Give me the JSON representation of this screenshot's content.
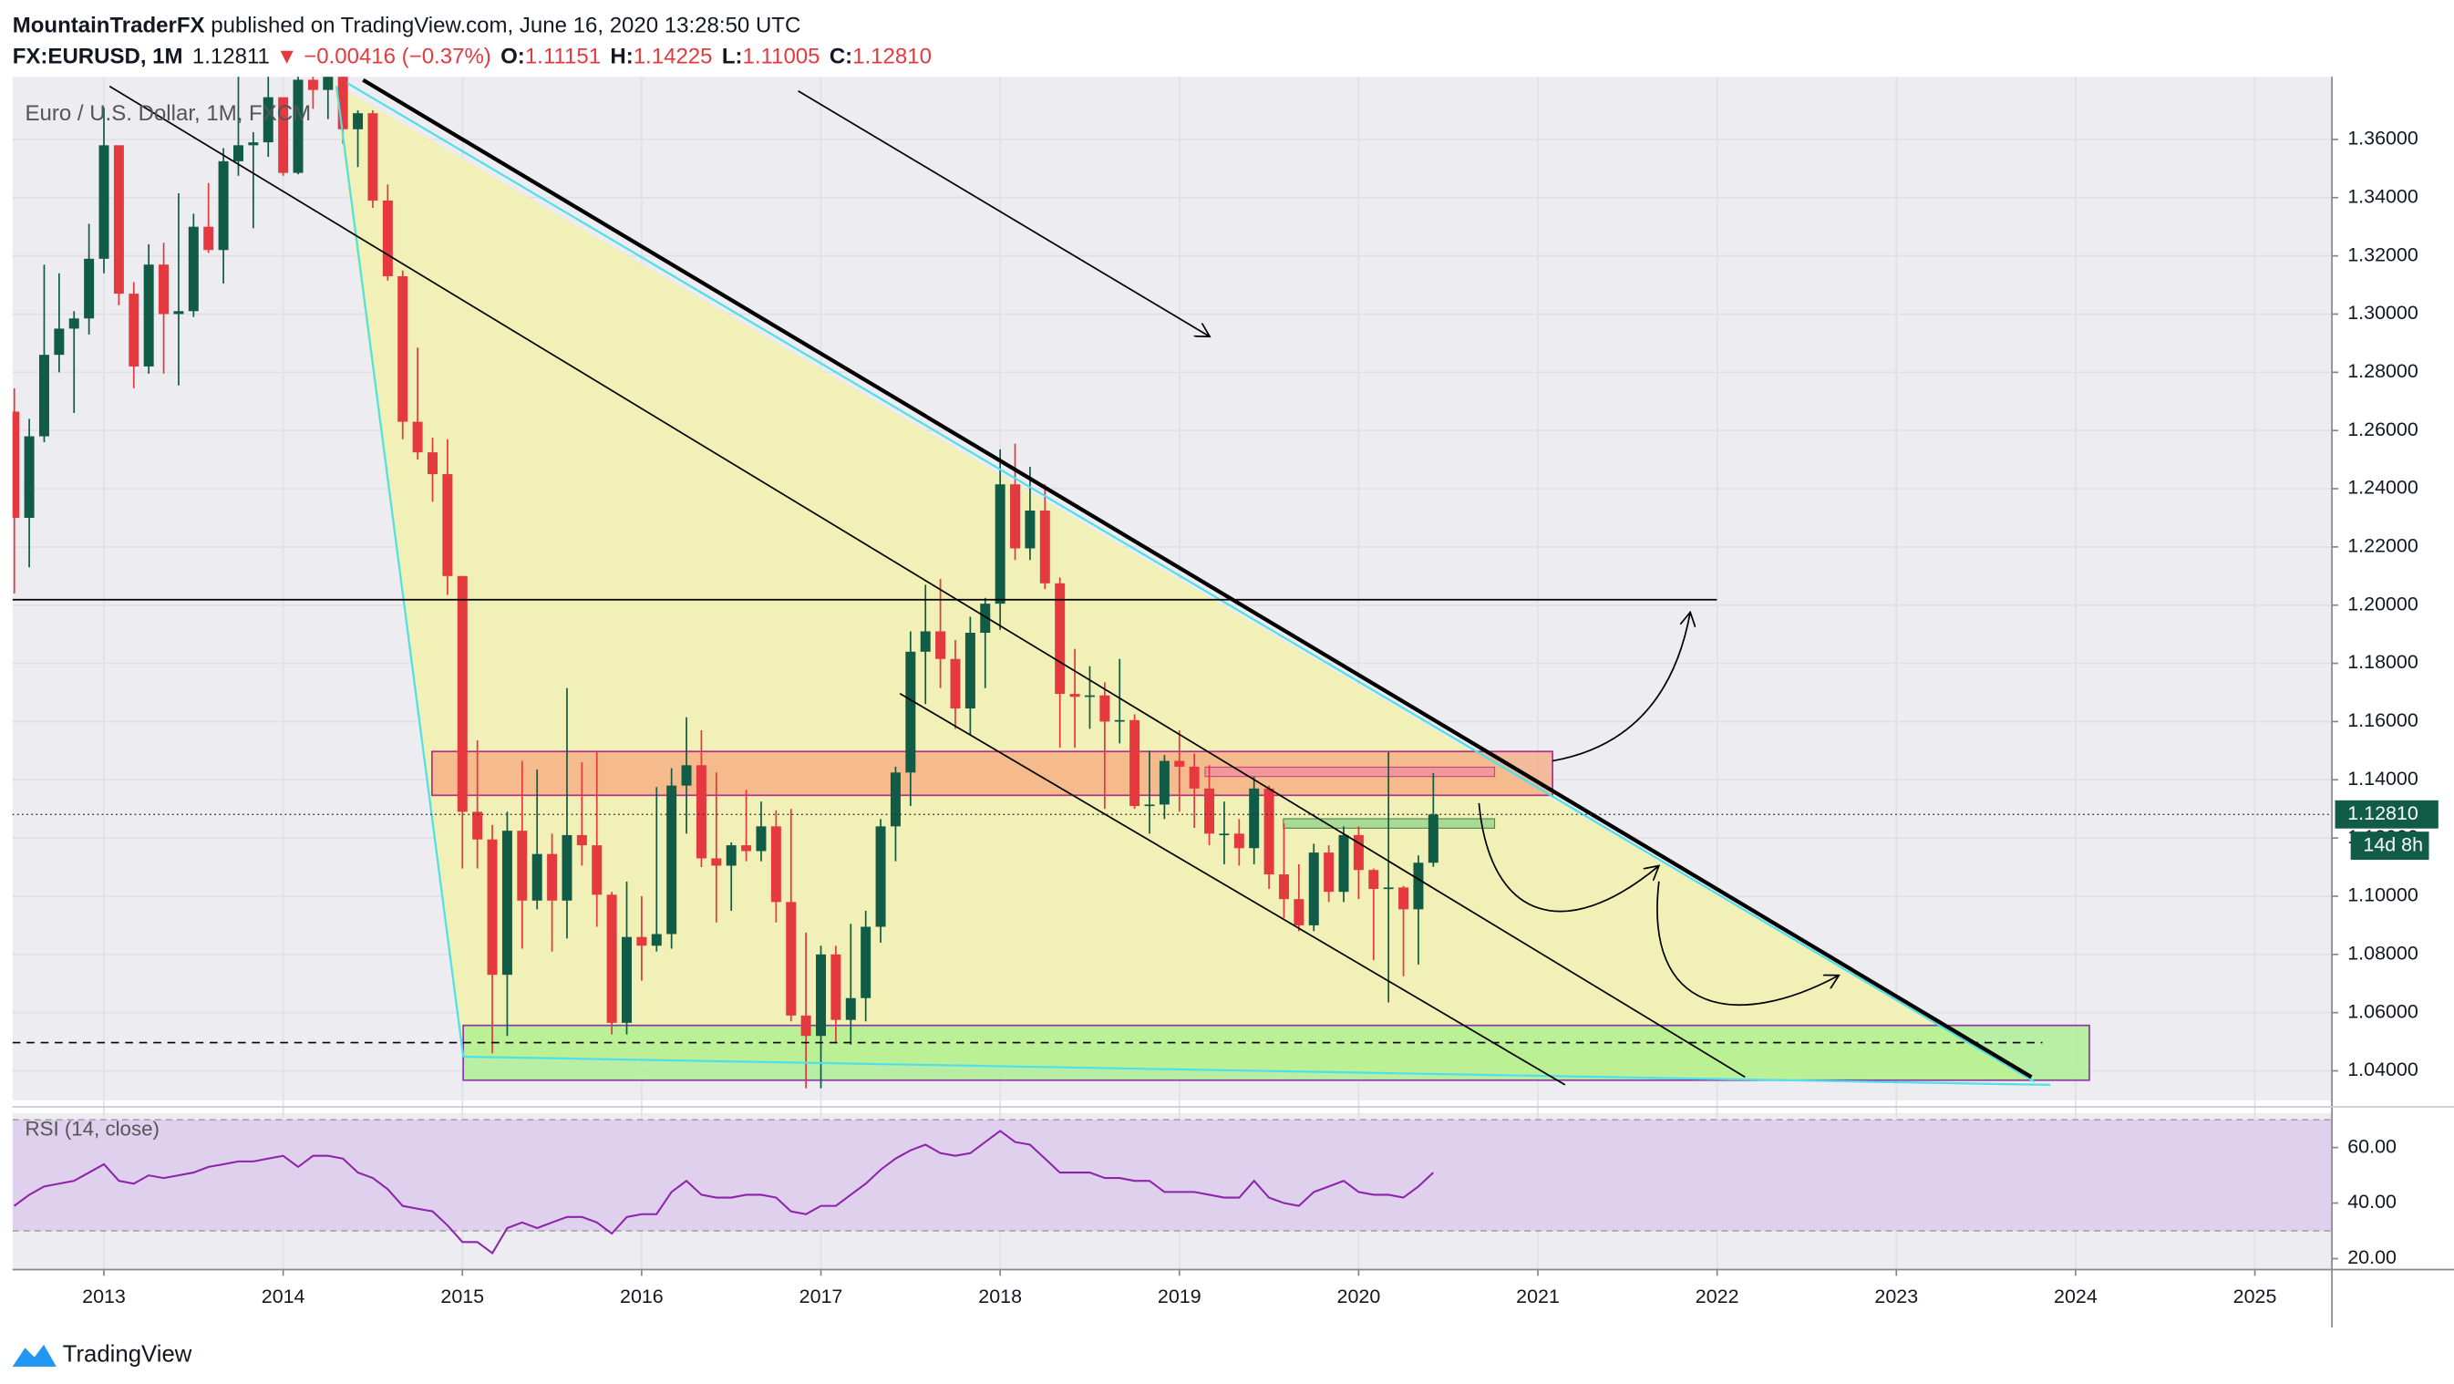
{
  "header": {
    "author": "MountainTraderFX",
    "published": " published on TradingView.com, June 16, 2020 13:28:50 UTC",
    "symbol": "FX:EURUSD, 1M",
    "last": "1.12811",
    "change": "▼ −0.00416 (−0.37%)",
    "ohlc": [
      {
        "label": "O:",
        "value": "1.11151"
      },
      {
        "label": "H:",
        "value": "1.14225"
      },
      {
        "label": "L:",
        "value": "1.11005"
      },
      {
        "label": "C:",
        "value": "1.12810"
      }
    ]
  },
  "footer": "TradingView",
  "chart_data": {
    "type": "candlestick",
    "title": "Euro / U.S. Dollar, 1M, FXCM",
    "x": [
      "2012-07",
      "2012-08",
      "2012-09",
      "2012-10",
      "2012-11",
      "2012-12",
      "2013-01",
      "2013-02",
      "2013-03",
      "2013-04",
      "2013-05",
      "2013-06",
      "2013-07",
      "2013-08",
      "2013-09",
      "2013-10",
      "2013-11",
      "2013-12",
      "2014-01",
      "2014-02",
      "2014-03",
      "2014-04",
      "2014-05",
      "2014-06",
      "2014-07",
      "2014-08",
      "2014-09",
      "2014-10",
      "2014-11",
      "2014-12",
      "2015-01",
      "2015-02",
      "2015-03",
      "2015-04",
      "2015-05",
      "2015-06",
      "2015-07",
      "2015-08",
      "2015-09",
      "2015-10",
      "2015-11",
      "2015-12",
      "2016-01",
      "2016-02",
      "2016-03",
      "2016-04",
      "2016-05",
      "2016-06",
      "2016-07",
      "2016-08",
      "2016-09",
      "2016-10",
      "2016-11",
      "2016-12",
      "2017-01",
      "2017-02",
      "2017-03",
      "2017-04",
      "2017-05",
      "2017-06",
      "2017-07",
      "2017-08",
      "2017-09",
      "2017-10",
      "2017-11",
      "2017-12",
      "2018-01",
      "2018-02",
      "2018-03",
      "2018-04",
      "2018-05",
      "2018-06",
      "2018-07",
      "2018-08",
      "2018-09",
      "2018-10",
      "2018-11",
      "2018-12",
      "2019-01",
      "2019-02",
      "2019-03",
      "2019-04",
      "2019-05",
      "2019-06",
      "2019-07",
      "2019-08",
      "2019-09",
      "2019-10",
      "2019-11",
      "2019-12",
      "2020-01",
      "2020-02",
      "2020-03",
      "2020-04",
      "2020-05",
      "2020-06"
    ],
    "open": [
      1.2665,
      1.23,
      1.258,
      1.286,
      1.295,
      1.2985,
      1.319,
      1.358,
      1.307,
      1.282,
      1.317,
      1.3,
      1.301,
      1.33,
      1.322,
      1.3525,
      1.358,
      1.359,
      1.3745,
      1.3485,
      1.3805,
      1.377,
      1.387,
      1.3635,
      1.369,
      1.339,
      1.313,
      1.263,
      1.2525,
      1.245,
      1.21,
      1.129,
      1.1195,
      1.073,
      1.1225,
      1.0985,
      1.1145,
      1.0985,
      1.121,
      1.1175,
      1.1005,
      1.0565,
      1.086,
      1.083,
      1.087,
      1.138,
      1.145,
      1.113,
      1.1105,
      1.1175,
      1.1155,
      1.124,
      1.098,
      1.059,
      1.052,
      1.08,
      1.0575,
      1.065,
      1.0895,
      1.124,
      1.1425,
      1.184,
      1.191,
      1.1815,
      1.1645,
      1.1905,
      1.2005,
      1.2415,
      1.2195,
      1.2325,
      1.2075,
      1.1695,
      1.1685,
      1.169,
      1.16,
      1.1605,
      1.131,
      1.1315,
      1.1465,
      1.1445,
      1.137,
      1.1215,
      1.1215,
      1.1165,
      1.137,
      1.1075,
      1.099,
      1.09,
      1.115,
      1.1015,
      1.121,
      1.109,
      1.1025,
      1.103,
      1.0955,
      1.1115
    ],
    "high": [
      1.2745,
      1.264,
      1.317,
      1.314,
      1.301,
      1.331,
      1.371,
      1.357,
      1.311,
      1.324,
      1.3245,
      1.3415,
      1.3345,
      1.345,
      1.357,
      1.3835,
      1.3625,
      1.3895,
      1.374,
      1.3825,
      1.3965,
      1.3995,
      1.3995,
      1.37,
      1.37,
      1.3445,
      1.315,
      1.2885,
      1.2575,
      1.257,
      1.21,
      1.1535,
      1.1245,
      1.129,
      1.1465,
      1.1435,
      1.1215,
      1.1715,
      1.146,
      1.1495,
      1.1015,
      1.105,
      1.1,
      1.1375,
      1.144,
      1.1615,
      1.157,
      1.1425,
      1.1185,
      1.1365,
      1.1325,
      1.1295,
      1.13,
      1.0875,
      1.083,
      1.083,
      1.0905,
      1.095,
      1.1265,
      1.1445,
      1.191,
      1.207,
      1.209,
      1.188,
      1.196,
      1.2025,
      1.2535,
      1.2555,
      1.2475,
      1.2415,
      1.2095,
      1.185,
      1.179,
      1.1735,
      1.1815,
      1.1625,
      1.15,
      1.1485,
      1.157,
      1.149,
      1.145,
      1.1325,
      1.1265,
      1.141,
      1.138,
      1.125,
      1.111,
      1.118,
      1.1175,
      1.124,
      1.124,
      1.1095,
      1.1495,
      1.1035,
      1.114,
      1.1423
    ],
    "low": [
      1.204,
      1.213,
      1.256,
      1.28,
      1.266,
      1.293,
      1.314,
      1.303,
      1.2745,
      1.2795,
      1.2795,
      1.2755,
      1.299,
      1.321,
      1.3105,
      1.3475,
      1.3295,
      1.354,
      1.3475,
      1.348,
      1.3705,
      1.367,
      1.3585,
      1.3505,
      1.3365,
      1.3115,
      1.257,
      1.25,
      1.2355,
      1.2035,
      1.1095,
      1.1095,
      1.046,
      1.052,
      1.082,
      1.0955,
      1.081,
      1.0855,
      1.1105,
      1.0895,
      1.0525,
      1.0525,
      1.071,
      1.081,
      1.082,
      1.1215,
      1.11,
      1.091,
      1.095,
      1.112,
      1.112,
      1.091,
      1.057,
      1.034,
      1.034,
      1.0495,
      1.049,
      1.057,
      1.084,
      1.112,
      1.131,
      1.166,
      1.1715,
      1.1575,
      1.1555,
      1.1715,
      1.1915,
      1.2155,
      1.2155,
      1.2055,
      1.151,
      1.151,
      1.1575,
      1.13,
      1.1525,
      1.13,
      1.1215,
      1.1265,
      1.129,
      1.1235,
      1.1175,
      1.111,
      1.1105,
      1.111,
      1.1025,
      1.0925,
      1.088,
      1.088,
      1.098,
      1.098,
      1.099,
      1.078,
      1.0635,
      1.0725,
      1.0765,
      1.1101
    ],
    "close": [
      1.23,
      1.258,
      1.286,
      1.295,
      1.2985,
      1.319,
      1.358,
      1.307,
      1.282,
      1.317,
      1.3,
      1.301,
      1.33,
      1.322,
      1.3525,
      1.358,
      1.359,
      1.3745,
      1.3485,
      1.3805,
      1.377,
      1.387,
      1.3635,
      1.369,
      1.339,
      1.313,
      1.263,
      1.2525,
      1.245,
      1.21,
      1.129,
      1.1195,
      1.073,
      1.1225,
      1.0985,
      1.1145,
      1.0985,
      1.121,
      1.1175,
      1.1005,
      1.0565,
      1.086,
      1.083,
      1.087,
      1.138,
      1.145,
      1.113,
      1.1105,
      1.1175,
      1.1155,
      1.124,
      1.098,
      1.059,
      1.052,
      1.08,
      1.0575,
      1.065,
      1.0895,
      1.124,
      1.1425,
      1.184,
      1.191,
      1.1815,
      1.1645,
      1.1905,
      1.2005,
      1.2415,
      1.2195,
      1.2325,
      1.2075,
      1.1695,
      1.1685,
      1.169,
      1.16,
      1.1605,
      1.131,
      1.1315,
      1.1465,
      1.1445,
      1.137,
      1.1215,
      1.1215,
      1.1165,
      1.137,
      1.1075,
      1.099,
      1.09,
      1.115,
      1.1015,
      1.121,
      1.109,
      1.1025,
      1.103,
      1.0955,
      1.1115,
      1.1281
    ],
    "up_color": "#115c47",
    "down_color": "#e4393e",
    "xlim": [
      2012.49,
      2025.43
    ],
    "xticks": [
      2013,
      2014,
      2015,
      2016,
      2017,
      2018,
      2019,
      2020,
      2021,
      2022,
      2023,
      2024,
      2025
    ],
    "ylim": [
      1.0298,
      1.3815
    ],
    "yticks": [
      {
        "value": 1.04,
        "label": "1.04000"
      },
      {
        "value": 1.06,
        "label": "1.06000"
      },
      {
        "value": 1.08,
        "label": "1.08000"
      },
      {
        "value": 1.1,
        "label": "1.10000"
      },
      {
        "value": 1.12,
        "label": "1.12000"
      },
      {
        "value": 1.14,
        "label": "1.14000"
      },
      {
        "value": 1.16,
        "label": "1.16000"
      },
      {
        "value": 1.18,
        "label": "1.18000"
      },
      {
        "value": 1.2,
        "label": "1.20000"
      },
      {
        "value": 1.22,
        "label": "1.22000"
      },
      {
        "value": 1.24,
        "label": "1.24000"
      },
      {
        "value": 1.26,
        "label": "1.26000"
      },
      {
        "value": 1.28,
        "label": "1.28000"
      },
      {
        "value": 1.3,
        "label": "1.30000"
      },
      {
        "value": 1.32,
        "label": "1.32000"
      },
      {
        "value": 1.34,
        "label": "1.34000"
      },
      {
        "value": 1.36,
        "label": "1.36000"
      }
    ],
    "grid": true,
    "last_price": {
      "value": 1.1281,
      "label": "1.12810"
    },
    "countdown": "14d 8h",
    "rsi": {
      "name": "RSI (14, close)",
      "color": "#8e24aa",
      "values": [
        39,
        43,
        46,
        47,
        48,
        51,
        54,
        48,
        47,
        50,
        49,
        50,
        51,
        53,
        54,
        55,
        55,
        56,
        57,
        53,
        57,
        57,
        56,
        51,
        49,
        45,
        39,
        38,
        37,
        32,
        26,
        26,
        22,
        31,
        33,
        31,
        33,
        35,
        35,
        33,
        29,
        35,
        36,
        36,
        44,
        48,
        43,
        42,
        42,
        43,
        43,
        42,
        37,
        36,
        39,
        39,
        43,
        47,
        52,
        56,
        59,
        61,
        58,
        57,
        58,
        62,
        66,
        62,
        61,
        56,
        51,
        51,
        51,
        49,
        49,
        48,
        48,
        44,
        44,
        44,
        43,
        42,
        42,
        48,
        42,
        40,
        39,
        44,
        46,
        48,
        44,
        43,
        43,
        42,
        46,
        51
      ],
      "ylim": [
        16.06,
        72.4
      ],
      "yticks": [
        {
          "value": 20,
          "label": "20.00"
        },
        {
          "value": 40,
          "label": "40.00"
        },
        {
          "value": 60,
          "label": "60.00"
        }
      ],
      "band": [
        30,
        70
      ]
    }
  }
}
